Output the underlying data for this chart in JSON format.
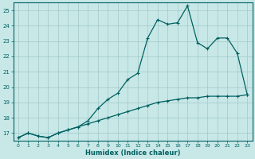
{
  "xlabel": "Humidex (Indice chaleur)",
  "bg_color": "#c8e8e8",
  "grid_color": "#a0c8c8",
  "line_color": "#006060",
  "xlim": [
    -0.5,
    23.5
  ],
  "ylim": [
    16.5,
    25.5
  ],
  "yticks": [
    17,
    18,
    19,
    20,
    21,
    22,
    23,
    24,
    25
  ],
  "xticks": [
    0,
    1,
    2,
    3,
    4,
    5,
    6,
    7,
    8,
    9,
    10,
    11,
    12,
    13,
    14,
    15,
    16,
    17,
    18,
    19,
    20,
    21,
    22,
    23
  ],
  "line1_x": [
    0,
    1,
    2,
    3,
    4,
    5,
    6,
    7,
    8,
    9,
    10,
    11,
    12,
    13,
    14,
    15,
    16,
    17,
    18,
    19,
    20,
    21,
    22,
    23
  ],
  "line1_y": [
    16.7,
    17.0,
    16.8,
    16.7,
    17.0,
    17.2,
    17.4,
    17.6,
    17.8,
    18.0,
    18.2,
    18.4,
    18.6,
    18.8,
    19.0,
    19.1,
    19.2,
    19.3,
    19.3,
    19.4,
    19.4,
    19.4,
    19.4,
    19.5
  ],
  "line2_x": [
    0,
    1,
    2,
    3,
    4,
    5,
    6,
    7,
    8,
    9,
    10,
    11,
    12,
    13,
    14,
    15,
    16,
    17,
    18,
    19,
    20,
    21,
    22,
    23
  ],
  "line2_y": [
    16.7,
    17.0,
    16.8,
    16.7,
    17.0,
    17.2,
    17.4,
    17.8,
    18.6,
    19.2,
    19.6,
    20.5,
    20.9,
    23.2,
    24.4,
    24.1,
    24.2,
    25.3,
    22.9,
    22.5,
    23.2,
    23.2,
    22.2,
    19.5
  ]
}
